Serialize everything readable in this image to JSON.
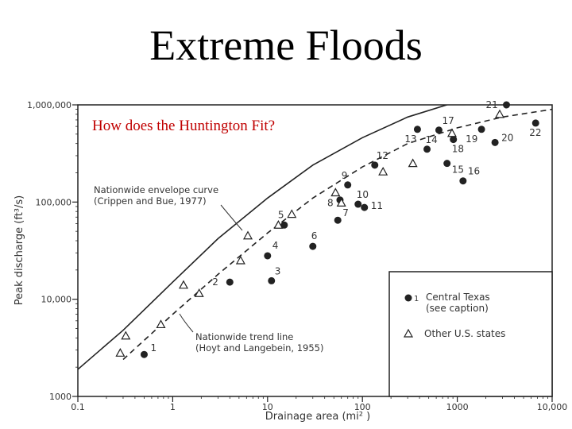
{
  "slide": {
    "title": "Extreme Floods",
    "question": "How does the Huntington Fit?"
  },
  "chart_data": {
    "type": "scatter",
    "xscale": "log",
    "yscale": "log",
    "xlim": [
      0.1,
      10000
    ],
    "ylim": [
      1000,
      1000000
    ],
    "xlabel": "Drainage area (mi² )",
    "ylabel": "Peak discharge (ft³/s)",
    "x_ticks": [
      "0.1",
      "1",
      "10",
      "100",
      "1000",
      "10,000"
    ],
    "y_ticks": [
      "1000",
      "10,000",
      "100,000",
      "1,000,000"
    ],
    "series": [
      {
        "name": "Central Texas (see caption)",
        "marker": "filled-circle",
        "points": [
          {
            "id": "1",
            "x": 0.5,
            "y": 2700
          },
          {
            "id": "2",
            "x": 4,
            "y": 15000
          },
          {
            "id": "3",
            "x": 11,
            "y": 15500
          },
          {
            "id": "4",
            "x": 10,
            "y": 28000
          },
          {
            "id": "5",
            "x": 15,
            "y": 58000
          },
          {
            "id": "6",
            "x": 30,
            "y": 35000
          },
          {
            "id": "7",
            "x": 55,
            "y": 65000
          },
          {
            "id": "8",
            "x": 58,
            "y": 105000
          },
          {
            "id": "9",
            "x": 70,
            "y": 150000
          },
          {
            "id": "10",
            "x": 90,
            "y": 95000
          },
          {
            "id": "11",
            "x": 105,
            "y": 88000
          },
          {
            "id": "12",
            "x": 135,
            "y": 240000
          },
          {
            "id": "13",
            "x": 380,
            "y": 560000
          },
          {
            "id": "14",
            "x": 480,
            "y": 350000
          },
          {
            "id": "15",
            "x": 780,
            "y": 250000
          },
          {
            "id": "16",
            "x": 1150,
            "y": 165000
          },
          {
            "id": "17",
            "x": 640,
            "y": 550000
          },
          {
            "id": "18",
            "x": 910,
            "y": 440000
          },
          {
            "id": "19",
            "x": 1800,
            "y": 560000
          },
          {
            "id": "20",
            "x": 2500,
            "y": 410000
          },
          {
            "id": "21",
            "x": 3300,
            "y": 1000000
          },
          {
            "id": "22",
            "x": 6700,
            "y": 650000
          }
        ]
      },
      {
        "name": "Other U.S. states",
        "marker": "open-triangle",
        "points": [
          {
            "x": 0.28,
            "y": 2800
          },
          {
            "x": 0.32,
            "y": 4200
          },
          {
            "x": 0.75,
            "y": 5500
          },
          {
            "x": 1.3,
            "y": 14000
          },
          {
            "x": 1.9,
            "y": 11500
          },
          {
            "x": 5.2,
            "y": 25000
          },
          {
            "x": 6.2,
            "y": 45000
          },
          {
            "x": 13,
            "y": 58000
          },
          {
            "x": 18,
            "y": 75000
          },
          {
            "x": 52,
            "y": 125000
          },
          {
            "x": 60,
            "y": 98000
          },
          {
            "x": 165,
            "y": 205000
          },
          {
            "x": 340,
            "y": 250000
          },
          {
            "x": 880,
            "y": 510000
          },
          {
            "x": 2800,
            "y": 800000
          }
        ]
      }
    ],
    "curves": [
      {
        "name": "Nationwide envelope curve (Crippen and Bue, 1977)",
        "style": "solid",
        "points": [
          [
            0.1,
            1900
          ],
          [
            0.3,
            4800
          ],
          [
            1,
            15000
          ],
          [
            3,
            42000
          ],
          [
            10,
            110000
          ],
          [
            30,
            240000
          ],
          [
            100,
            460000
          ],
          [
            300,
            750000
          ],
          [
            1000,
            1080000
          ]
        ]
      },
      {
        "name": "Nationwide trend line (Hoyt and Langebein, 1955)",
        "style": "dashed",
        "points": [
          [
            0.3,
            2400
          ],
          [
            1,
            7000
          ],
          [
            3,
            18000
          ],
          [
            10,
            48000
          ],
          [
            30,
            110000
          ],
          [
            100,
            230000
          ],
          [
            300,
            400000
          ],
          [
            1000,
            580000
          ],
          [
            3000,
            750000
          ],
          [
            10000,
            900000
          ]
        ]
      }
    ],
    "annotations": [
      {
        "line1": "Nationwide envelope curve",
        "line2": "(Crippen and Bue, 1977)"
      },
      {
        "line1": "Nationwide trend line",
        "line2": "(Hoyt and Langebein, 1955)"
      }
    ],
    "legend": {
      "placement": "bottom-right",
      "entries": [
        {
          "marker": "filled-circle",
          "label": "1",
          "line1": "Central Texas",
          "line2": "(see caption)"
        },
        {
          "marker": "open-triangle",
          "line1": "Other U.S. states"
        }
      ]
    },
    "grid": false
  }
}
